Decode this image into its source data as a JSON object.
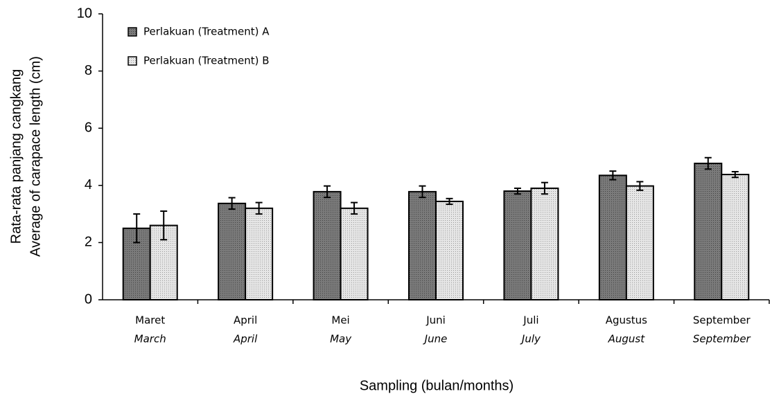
{
  "chart_data": {
    "type": "bar",
    "ylabel": [
      "Rata-rata panjang cangkang",
      "Average of carapace length (cm)"
    ],
    "xlabel": "Sampling (bulan/months)",
    "categories": [
      "Maret",
      "April",
      "Mei",
      "Juni",
      "Juli",
      "Agustus",
      "September"
    ],
    "categories_en": [
      "March",
      "April",
      "May",
      "June",
      "July",
      "August",
      "September"
    ],
    "series": [
      {
        "name": "Perlakuan (Treatment) A",
        "color": "#7a7a7a",
        "values": [
          2.5,
          3.37,
          3.78,
          3.78,
          3.8,
          4.35,
          4.77
        ],
        "errors": [
          0.5,
          0.2,
          0.2,
          0.2,
          0.1,
          0.15,
          0.2
        ]
      },
      {
        "name": "Perlakuan (Treatment) B",
        "color": "#e6e6e6",
        "values": [
          2.6,
          3.2,
          3.2,
          3.44,
          3.9,
          3.98,
          4.38
        ],
        "errors": [
          0.5,
          0.2,
          0.2,
          0.1,
          0.2,
          0.15,
          0.1
        ]
      }
    ],
    "ylim": [
      0,
      10
    ],
    "yticks": [
      0,
      2,
      4,
      6,
      8,
      10
    ],
    "legend": "upper left"
  }
}
